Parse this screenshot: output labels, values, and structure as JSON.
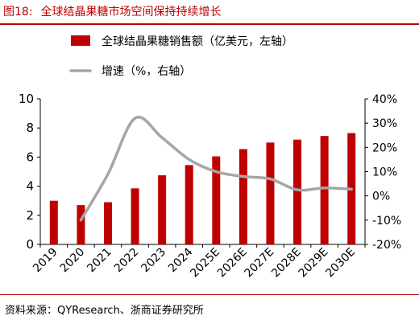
{
  "header": {
    "figure_label": "图18:",
    "title": "全球结晶果糖市场空间保持持续增长"
  },
  "source": "资料来源：QYResearch、浙商证券研究所",
  "colors": {
    "bar": "#c00000",
    "line": "#a6a6a6",
    "title": "#c00000"
  },
  "chart_data": {
    "type": "bar",
    "categories": [
      "2019",
      "2020",
      "2021",
      "2022",
      "2023",
      "2024",
      "2025E",
      "2026E",
      "2027E",
      "2028E",
      "2029E",
      "2030E"
    ],
    "series": [
      {
        "name": "全球结晶果糖销售额（亿美元，左轴）",
        "type": "bar",
        "axis": "left",
        "values": [
          3.0,
          2.7,
          2.9,
          3.85,
          4.75,
          5.45,
          6.05,
          6.55,
          7.0,
          7.2,
          7.45,
          7.65
        ]
      },
      {
        "name": "增速（%，右轴）",
        "type": "line",
        "axis": "right",
        "values": [
          null,
          -10,
          9,
          32,
          24,
          15,
          10,
          8,
          7,
          2.5,
          3.3,
          2.8
        ]
      }
    ],
    "y_left": {
      "lim": [
        0,
        10
      ],
      "ticks": [
        "0",
        "2",
        "4",
        "6",
        "8",
        "10"
      ]
    },
    "y_right": {
      "lim": [
        -20,
        40
      ],
      "ticks": [
        "-20%",
        "-10%",
        "0%",
        "10%",
        "20%",
        "30%",
        "40%"
      ]
    },
    "legend_position": "top-right",
    "grid": false
  }
}
